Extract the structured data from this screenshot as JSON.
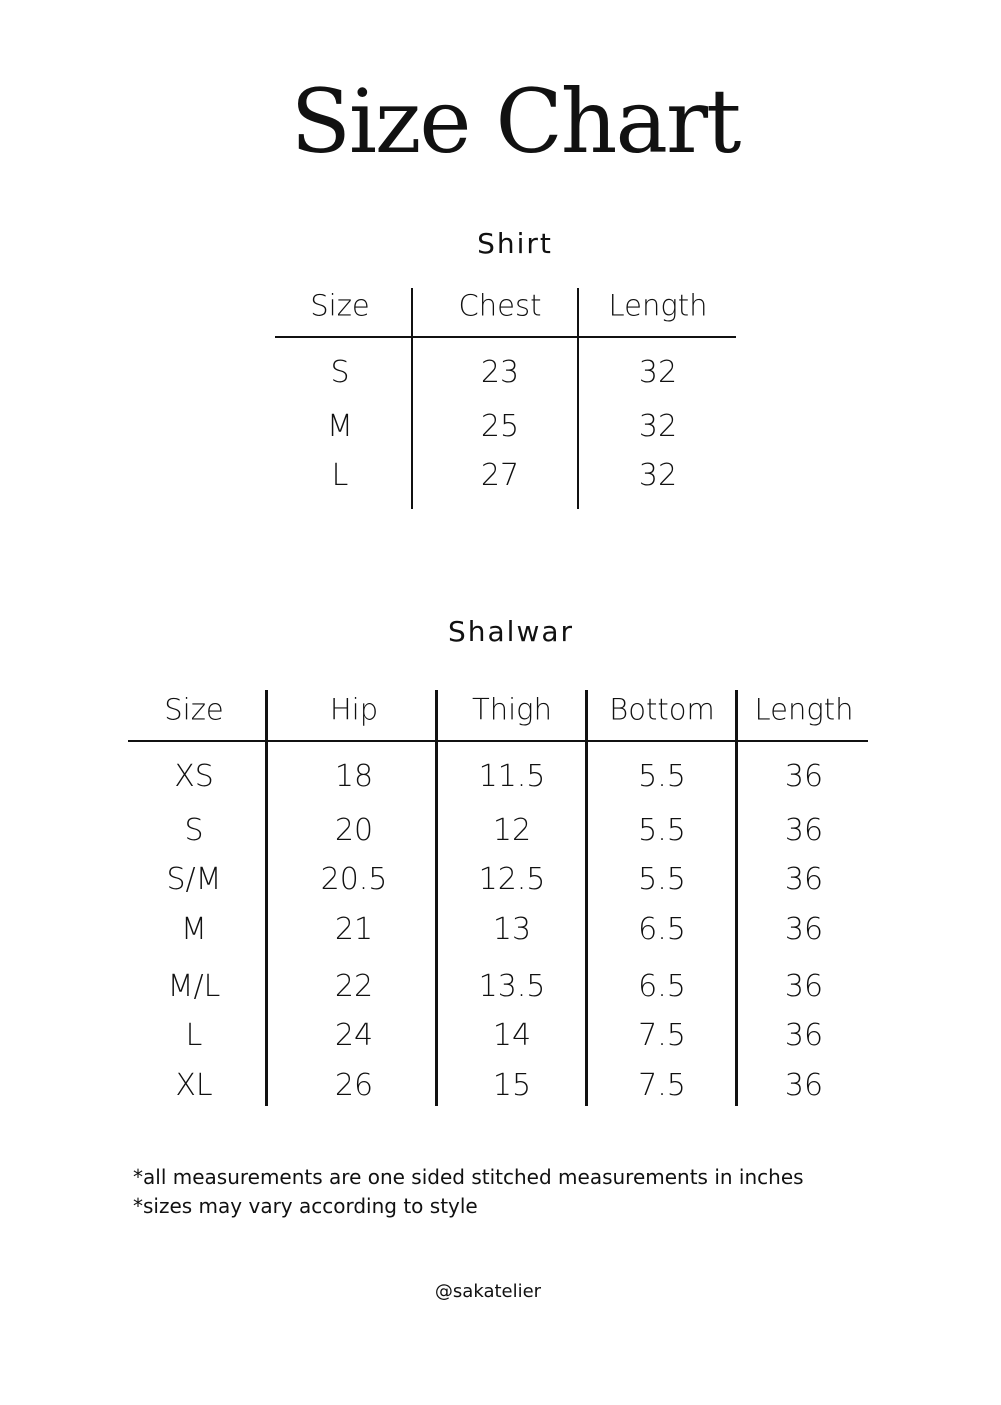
{
  "title": "Size Chart",
  "shirt": {
    "heading": "Shirt",
    "headers": [
      "Size",
      "Chest",
      "Length"
    ],
    "rows": [
      [
        "S",
        "23",
        "32"
      ],
      [
        "M",
        "25",
        "32"
      ],
      [
        "L",
        "27",
        "32"
      ]
    ]
  },
  "shalwar": {
    "heading": "Shalwar",
    "headers": [
      "Size",
      "Hip",
      "Thigh",
      "Bottom",
      "Length"
    ],
    "rows": [
      [
        "XS",
        "18",
        "11.5",
        "5.5",
        "36"
      ],
      [
        "S",
        "20",
        "12",
        "5.5",
        "36"
      ],
      [
        "S/M",
        "20.5",
        "12.5",
        "5.5",
        "36"
      ],
      [
        "M",
        "21",
        "13",
        "6.5",
        "36"
      ],
      [
        "M/L",
        "22",
        "13.5",
        "6.5",
        "36"
      ],
      [
        "L",
        "24",
        "14",
        "7.5",
        "36"
      ],
      [
        "XL",
        "26",
        "15",
        "7.5",
        "36"
      ]
    ]
  },
  "notes": [
    "*all measurements are one sided stitched measurements in inches",
    "*sizes may vary according to style"
  ],
  "handle": "@sakatelier"
}
